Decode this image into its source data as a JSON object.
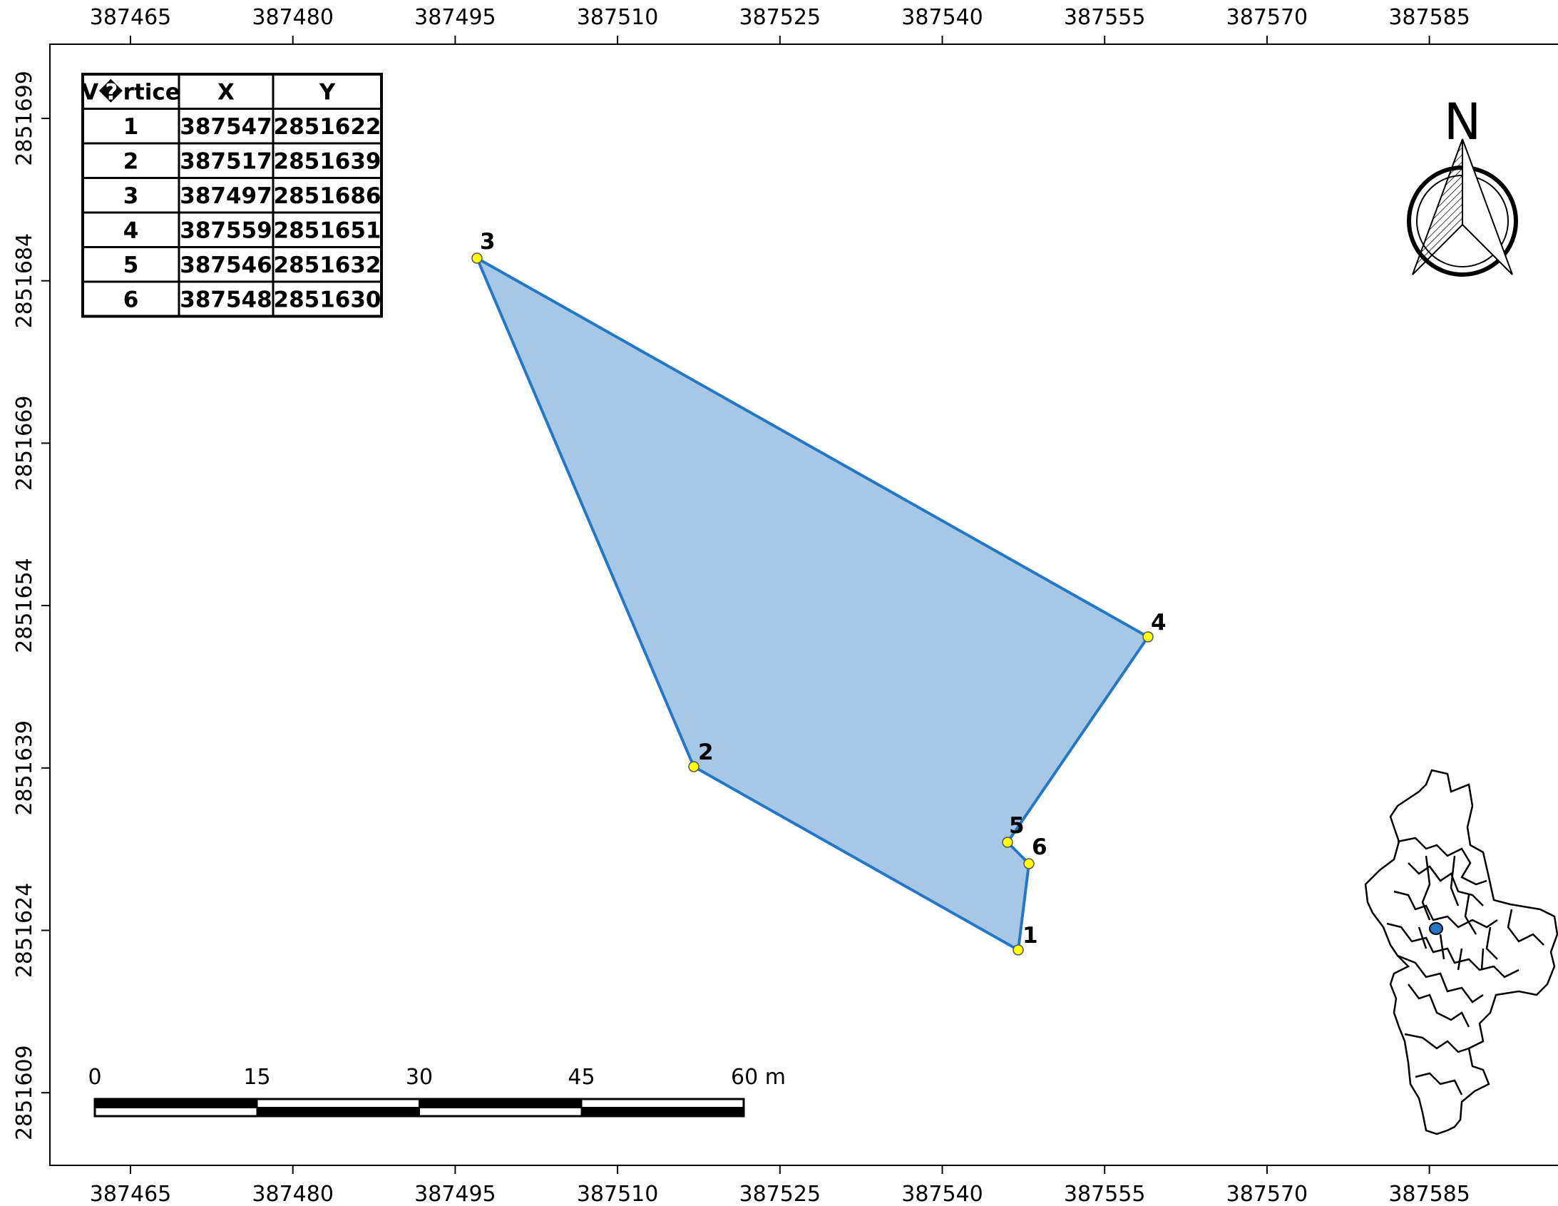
{
  "map": {
    "x_ticks": [
      "387465",
      "387480",
      "387495",
      "387510",
      "387525",
      "387540",
      "387555",
      "387570",
      "387585"
    ],
    "y_ticks": [
      "2851699",
      "2851684",
      "2851669",
      "2851654",
      "2851639",
      "2851624",
      "2851609"
    ],
    "x_tick_values": [
      387465,
      387480,
      387495,
      387510,
      387525,
      387540,
      387555,
      387570,
      387585
    ],
    "y_tick_values": [
      2851699,
      2851684,
      2851669,
      2851654,
      2851639,
      2851624,
      2851609
    ],
    "polygon_fill": "#a6c8e6",
    "polygon_stroke": "#2377c4",
    "vertex_fill": "#ffff00"
  },
  "vertex_table": {
    "headers": [
      "V�rtice",
      "X",
      "Y"
    ],
    "rows": [
      {
        "id": "1",
        "x": "387547",
        "y": "2851622"
      },
      {
        "id": "2",
        "x": "387517",
        "y": "2851639"
      },
      {
        "id": "3",
        "x": "387497",
        "y": "2851686"
      },
      {
        "id": "4",
        "x": "387559",
        "y": "2851651"
      },
      {
        "id": "5",
        "x": "387546",
        "y": "2851632"
      },
      {
        "id": "6",
        "x": "387548",
        "y": "2851630"
      }
    ]
  },
  "vertex_labels": [
    "1",
    "2",
    "3",
    "4",
    "5",
    "6"
  ],
  "north_arrow": {
    "letter": "N",
    "icon": "north-arrow-icon"
  },
  "scale_bar": {
    "labels": [
      "0",
      "15",
      "30",
      "45",
      "60 m"
    ],
    "values": [
      0,
      15,
      30,
      45,
      60
    ],
    "units": "m"
  },
  "locator_map": {
    "icon": "locator-inset-map",
    "highlight_color": "#2377c4"
  }
}
